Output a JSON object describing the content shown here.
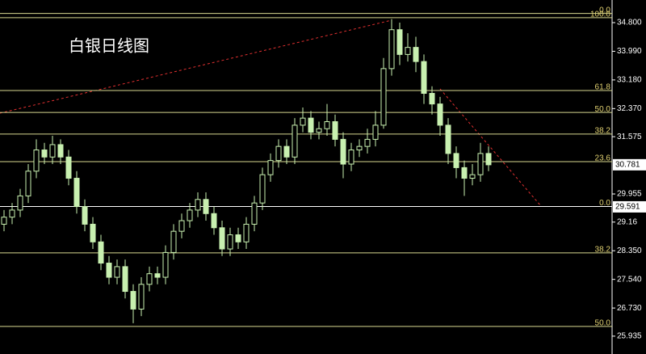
{
  "chart_data": {
    "type": "candlestick",
    "title": "白银日线图",
    "ylim": [
      25.43,
      35.44
    ],
    "yticks": [
      {
        "value": 34.8,
        "label": "34.800"
      },
      {
        "value": 33.99,
        "label": "33.990"
      },
      {
        "value": 33.18,
        "label": "33.180"
      },
      {
        "value": 32.37,
        "label": "32.370"
      },
      31.575,
      29.955,
      29.16,
      {
        "value": 28.35,
        "label": "28.350"
      },
      {
        "value": 27.54,
        "label": "27.540"
      },
      {
        "value": 26.73,
        "label": "26.730"
      },
      25.935
    ],
    "price_markers": [
      30.781,
      29.591
    ],
    "fib_lines": [
      {
        "label": "0.0",
        "price": 35.06,
        "color": "#d8d890"
      },
      {
        "label": "100.0",
        "price": 34.94,
        "color": "#d8d890"
      },
      {
        "label": "61.8",
        "price": 32.88,
        "color": "#d8d890"
      },
      {
        "label": "50.0",
        "price": 32.26,
        "color": "#d8d890"
      },
      {
        "label": "38.2",
        "price": 31.65,
        "color": "#d8d890"
      },
      {
        "label": "23.6",
        "price": 30.87,
        "color": "#d8d890"
      },
      {
        "label": "0.0",
        "price": 29.6,
        "color": "#ffffff"
      },
      {
        "label": "38.2",
        "price": 28.29,
        "color": "#d8d890"
      },
      {
        "label": "50.0",
        "price": 26.21,
        "color": "#d8d890"
      }
    ],
    "candle_color": "#c8f0b0",
    "open": [
      29.1,
      29.3,
      29.5,
      29.9,
      30.6,
      31.2,
      31.0,
      31.35,
      31.0,
      30.4,
      29.6,
      29.1,
      28.6,
      28.0,
      27.6,
      27.9,
      27.2,
      26.7,
      27.4,
      27.7,
      27.6,
      28.3,
      28.9,
      29.2,
      29.5,
      29.8,
      29.4,
      29.0,
      28.4,
      28.8,
      28.6,
      29.1,
      29.7,
      30.5,
      30.9,
      31.3,
      31.0,
      31.9,
      32.1,
      31.7,
      31.8,
      32.0,
      31.5,
      30.8,
      31.2,
      31.3,
      31.5,
      31.9,
      33.5,
      34.6,
      33.9,
      34.1,
      33.7,
      32.8,
      32.5,
      31.9,
      31.1,
      30.7,
      30.4,
      30.5,
      31.1
    ],
    "high": [
      29.5,
      29.7,
      30.1,
      30.8,
      31.5,
      31.4,
      31.6,
      31.5,
      31.2,
      30.6,
      29.8,
      29.3,
      28.8,
      28.2,
      28.1,
      28.1,
      27.4,
      27.6,
      27.9,
      27.9,
      28.5,
      29.1,
      29.4,
      29.7,
      30.0,
      30.0,
      29.6,
      29.2,
      29.0,
      29.0,
      29.3,
      29.9,
      30.7,
      31.1,
      31.5,
      31.5,
      32.1,
      32.4,
      32.3,
      32.0,
      32.5,
      32.2,
      31.7,
      31.4,
      31.5,
      31.8,
      32.3,
      33.8,
      34.9,
      34.8,
      34.5,
      34.4,
      33.9,
      33.0,
      32.7,
      32.1,
      31.3,
      30.9,
      30.8,
      31.4,
      31.3
    ],
    "low": [
      28.9,
      29.1,
      29.3,
      29.7,
      30.4,
      30.8,
      30.8,
      30.8,
      30.2,
      29.4,
      28.9,
      28.4,
      27.8,
      27.4,
      27.4,
      27.0,
      26.3,
      26.5,
      27.2,
      27.4,
      27.4,
      28.1,
      28.7,
      29.0,
      29.3,
      29.2,
      28.8,
      28.2,
      28.2,
      28.4,
      28.4,
      28.9,
      29.5,
      30.3,
      30.7,
      30.8,
      30.8,
      31.7,
      31.5,
      31.5,
      31.6,
      31.3,
      30.4,
      30.6,
      31.0,
      31.1,
      31.3,
      31.8,
      33.3,
      33.6,
      33.7,
      33.4,
      32.5,
      32.2,
      31.6,
      30.8,
      30.4,
      29.9,
      30.2,
      30.3,
      30.6
    ],
    "close": [
      29.3,
      29.5,
      29.9,
      30.6,
      31.2,
      31.0,
      31.35,
      31.0,
      30.4,
      29.6,
      29.1,
      28.6,
      28.0,
      27.6,
      27.9,
      27.2,
      26.7,
      27.4,
      27.7,
      27.6,
      28.3,
      28.9,
      29.2,
      29.5,
      29.8,
      29.4,
      29.0,
      28.4,
      28.8,
      28.6,
      29.1,
      29.7,
      30.5,
      30.9,
      31.3,
      31.0,
      31.9,
      32.1,
      31.7,
      31.8,
      32.0,
      31.5,
      30.8,
      31.2,
      31.3,
      31.5,
      31.9,
      33.5,
      34.6,
      33.9,
      34.1,
      33.7,
      32.8,
      32.5,
      31.9,
      31.1,
      30.7,
      30.4,
      30.5,
      31.1,
      30.78
    ]
  }
}
